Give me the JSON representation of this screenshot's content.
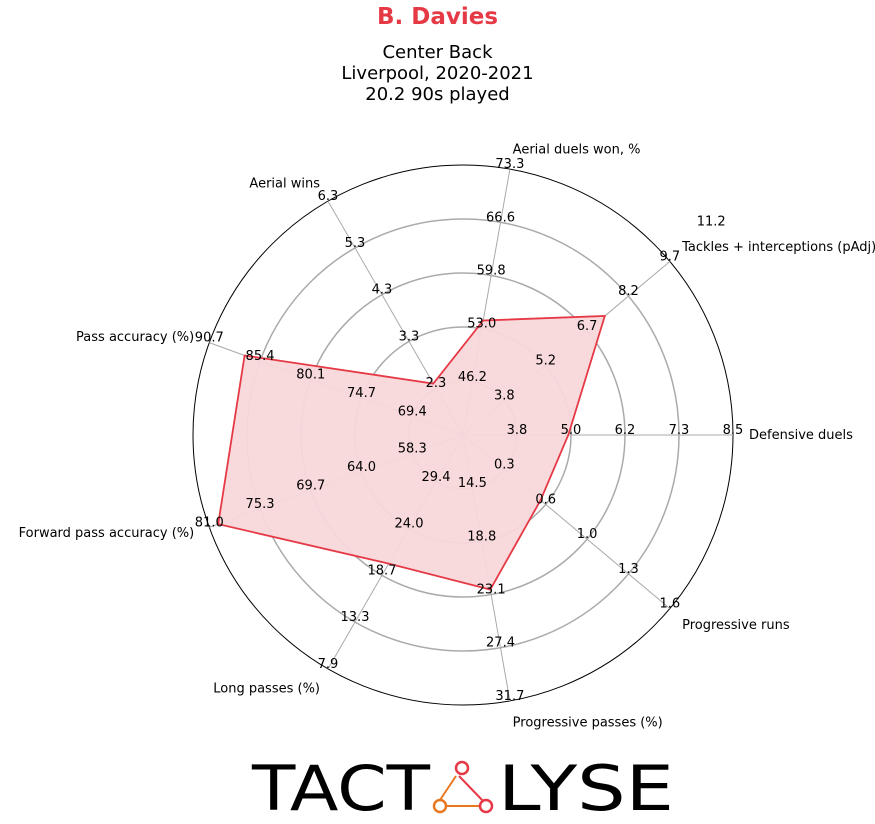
{
  "header": {
    "player": "B. Davies",
    "position": "Center Back",
    "team_season": "Liverpool, 2020-2021",
    "minutes": "20.2 90s played"
  },
  "colors": {
    "accent": "#e63946",
    "fill": "#f8d7da",
    "grid": "#aaaaaa"
  },
  "logo": {
    "left": "TACT",
    "right": "LYSE"
  },
  "chart_data": {
    "type": "radar",
    "title": "B. Davies",
    "axes": [
      {
        "label": "Defensive duels",
        "ticks": [
          "3.8",
          "5.0",
          "6.2",
          "7.3",
          "8.5"
        ],
        "min": 2.6,
        "max": 8.5,
        "value": 4.9
      },
      {
        "label": "Tackles + interceptions (pAdj)",
        "ticks": [
          "3.8",
          "5.2",
          "6.7",
          "8.2",
          "9.7",
          "11.2"
        ],
        "min": 2.3,
        "max": 11.2,
        "value": 8.4
      },
      {
        "label": "Aerial duels won, %",
        "ticks": [
          "46.2",
          "53.0",
          "59.8",
          "66.6",
          "73.3"
        ],
        "min": 39.4,
        "max": 73.3,
        "value": 54.0
      },
      {
        "label": "Aerial wins",
        "ticks": [
          "2.3",
          "3.3",
          "4.3",
          "5.3",
          "6.3"
        ],
        "min": 1.3,
        "max": 6.3,
        "value": 2.4
      },
      {
        "label": "Pass accuracy (%)",
        "ticks": [
          "69.4",
          "74.7",
          "80.1",
          "85.4",
          "90.7"
        ],
        "min": 64.1,
        "max": 90.7,
        "value": 87.0
      },
      {
        "label": "Forward pass accuracy (%)",
        "ticks": [
          "58.3",
          "64.0",
          "69.7",
          "75.3",
          "81.0"
        ],
        "min": 52.6,
        "max": 81.0,
        "value": 80.0
      },
      {
        "label": "Long passes (%)",
        "ticks": [
          "29.4",
          "24.0",
          "18.7",
          "13.3",
          "7.9"
        ],
        "min": 34.8,
        "max": 7.9,
        "value": 20.0
      },
      {
        "label": "Progressive passes (%)",
        "ticks": [
          "14.5",
          "18.8",
          "23.1",
          "27.4",
          "31.7"
        ],
        "min": 10.2,
        "max": 31.7,
        "value": 22.7
      },
      {
        "label": "Progressive runs",
        "ticks": [
          "0.3",
          "0.6",
          "1.0",
          "1.3",
          "1.6"
        ],
        "min": 0.0,
        "max": 1.6,
        "value": 0.6
      }
    ]
  }
}
